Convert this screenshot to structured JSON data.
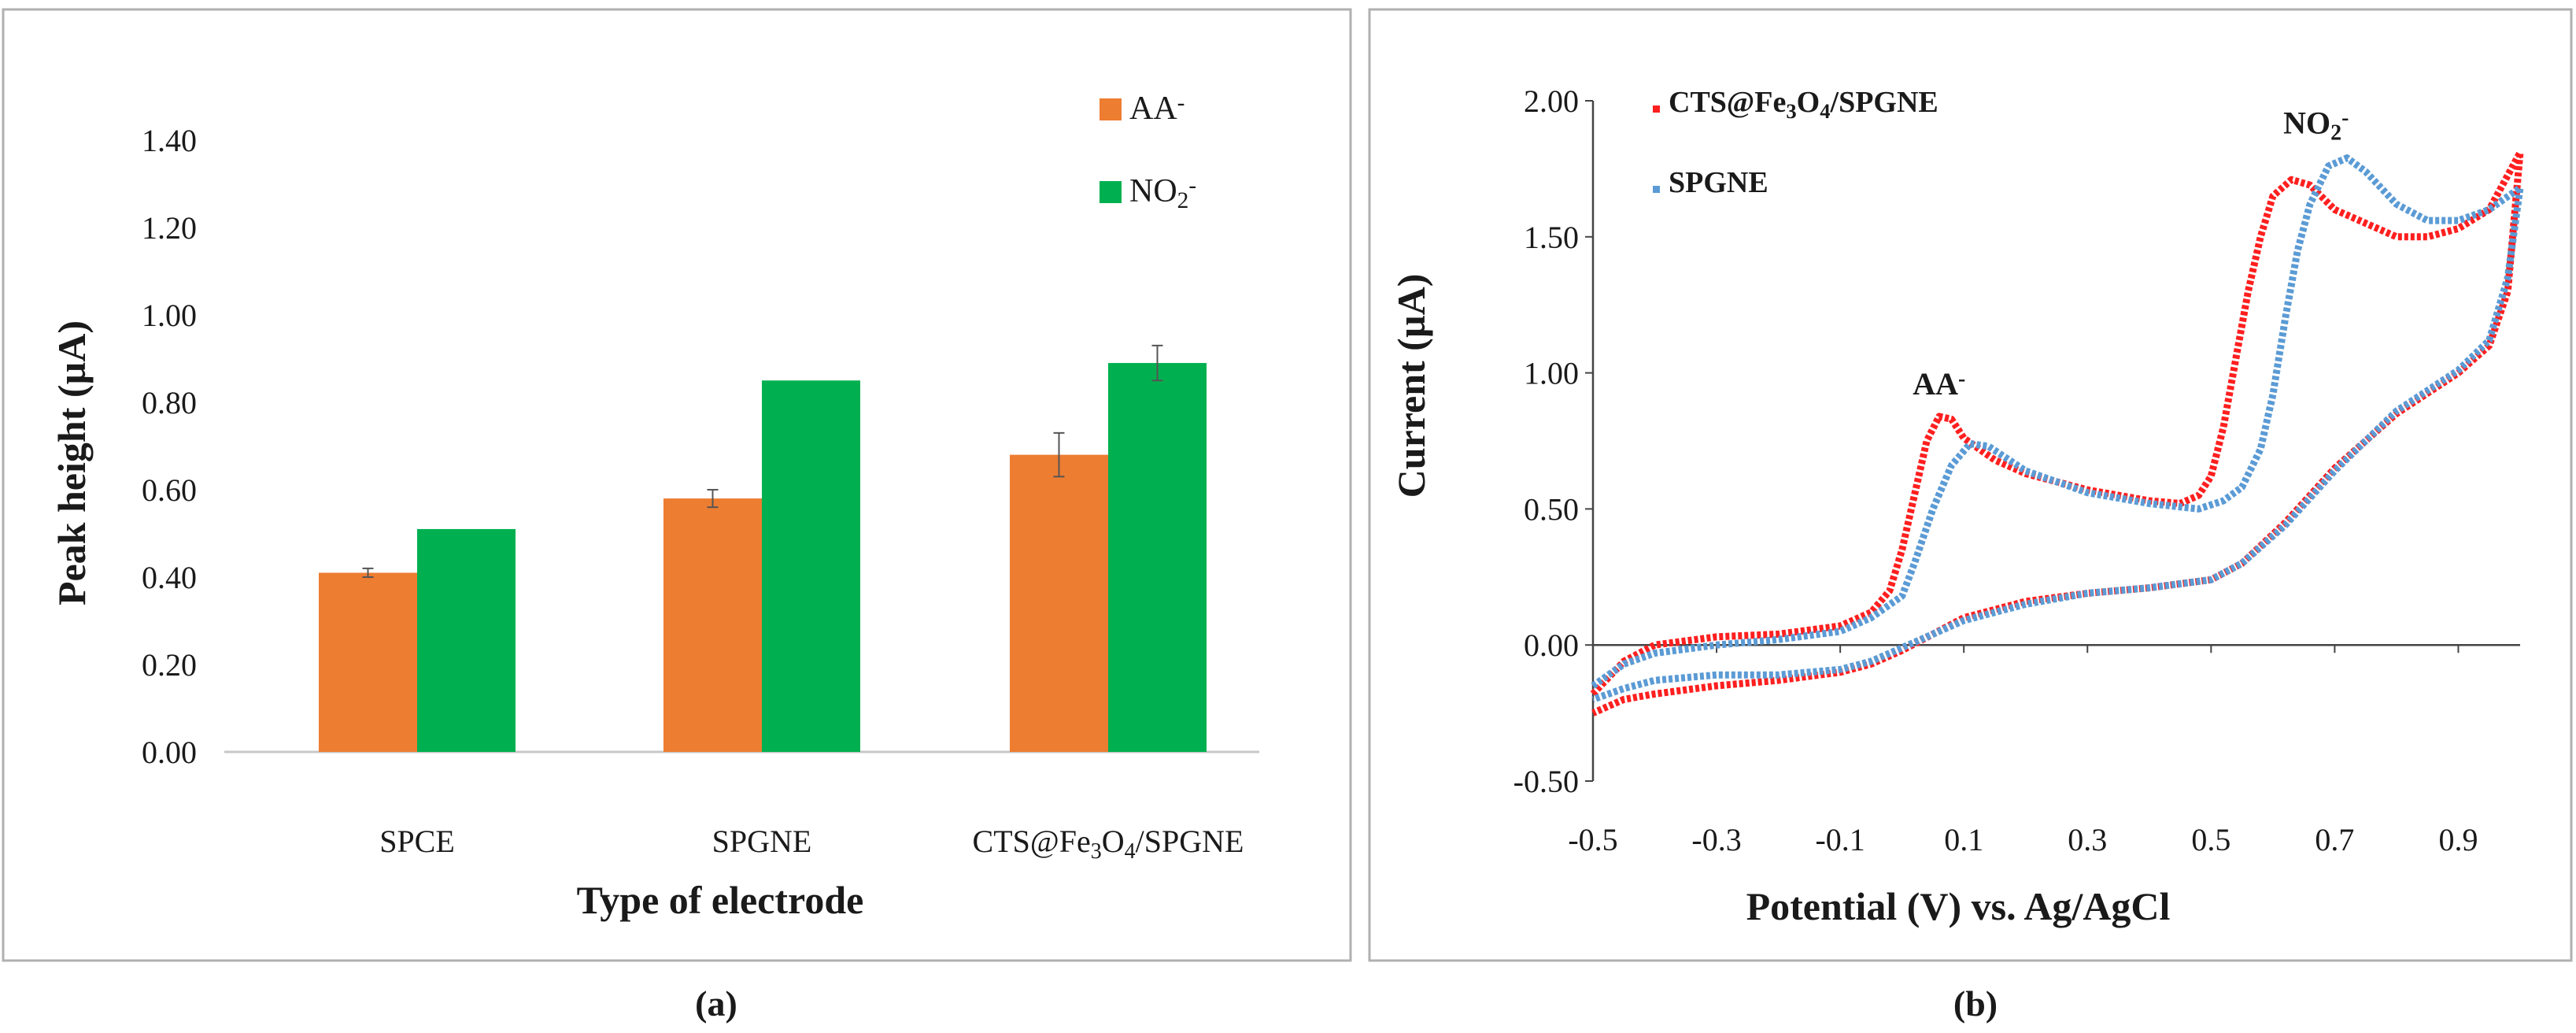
{
  "chart_data": [
    {
      "panel": "(a)",
      "type": "bar",
      "categories": [
        "SPCE",
        "SPGNE",
        "CTS@Fe3O4/SPGNE"
      ],
      "category_labels": [
        {
          "parts": [
            {
              "t": "SPCE"
            }
          ]
        },
        {
          "parts": [
            {
              "t": "SPGNE"
            }
          ]
        },
        {
          "parts": [
            {
              "t": "CTS@Fe"
            },
            {
              "t": "3",
              "sub": true
            },
            {
              "t": "O"
            },
            {
              "t": "4",
              "sub": true
            },
            {
              "t": "/SPGNE"
            }
          ]
        }
      ],
      "series": [
        {
          "name": "AA-",
          "label_parts": [
            {
              "t": "AA"
            },
            {
              "t": "-",
              "sup": true
            }
          ],
          "color": "#ED7D31",
          "values": [
            0.41,
            0.58,
            0.68
          ],
          "errors": [
            0.01,
            0.02,
            0.05
          ]
        },
        {
          "name": "NO2-",
          "label_parts": [
            {
              "t": "NO"
            },
            {
              "t": "2",
              "sub": true
            },
            {
              "t": "-",
              "sup": true
            }
          ],
          "color": "#00B050",
          "values": [
            0.51,
            0.85,
            0.89
          ],
          "errors": [
            0.0,
            0.0,
            0.04
          ]
        }
      ],
      "xlabel": "Type of electrode",
      "ylabel": "Peak height (µA)",
      "ylim": [
        0,
        1.4
      ],
      "yticks": [
        "0.00",
        "0.20",
        "0.40",
        "0.60",
        "0.80",
        "1.00",
        "1.20",
        "1.40"
      ],
      "legend": "top-right"
    },
    {
      "panel": "(b)",
      "type": "line",
      "xlabel": "Potential (V) vs. Ag/AgCl",
      "ylabel": "Current (µA)",
      "xlim": [
        -0.5,
        1.0
      ],
      "ylim": [
        -0.5,
        2.0
      ],
      "xticks": [
        "-0.5",
        "-0.3",
        "-0.1",
        "0.1",
        "0.3",
        "0.5",
        "0.7",
        "0.9"
      ],
      "yticks": [
        "-0.50",
        "0.00",
        "0.50",
        "1.00",
        "1.50",
        "2.00"
      ],
      "legend": "top-left",
      "annotations": [
        {
          "parts": [
            {
              "t": "AA"
            },
            {
              "t": "-",
              "sup": true
            }
          ],
          "x": 0.06,
          "y": 0.92
        },
        {
          "parts": [
            {
              "t": "NO"
            },
            {
              "t": "2",
              "sub": true
            },
            {
              "t": "-",
              "sup": true
            }
          ],
          "x": 0.67,
          "y": 1.88
        }
      ],
      "series": [
        {
          "name": "CTS@Fe3O4/SPGNE",
          "label_parts": [
            {
              "t": "CTS@Fe"
            },
            {
              "t": "3",
              "sub": true
            },
            {
              "t": "O"
            },
            {
              "t": "4",
              "sub": true
            },
            {
              "t": "/SPGNE"
            }
          ],
          "color": "#FF1F1F",
          "forward": [
            [
              -0.5,
              -0.18
            ],
            [
              -0.45,
              -0.06
            ],
            [
              -0.4,
              0.0
            ],
            [
              -0.3,
              0.03
            ],
            [
              -0.2,
              0.04
            ],
            [
              -0.1,
              0.07
            ],
            [
              -0.05,
              0.12
            ],
            [
              -0.02,
              0.2
            ],
            [
              0.0,
              0.35
            ],
            [
              0.02,
              0.55
            ],
            [
              0.04,
              0.75
            ],
            [
              0.06,
              0.84
            ],
            [
              0.08,
              0.83
            ],
            [
              0.1,
              0.76
            ],
            [
              0.15,
              0.68
            ],
            [
              0.2,
              0.63
            ],
            [
              0.3,
              0.57
            ],
            [
              0.4,
              0.53
            ],
            [
              0.45,
              0.52
            ],
            [
              0.48,
              0.55
            ],
            [
              0.5,
              0.62
            ],
            [
              0.52,
              0.8
            ],
            [
              0.54,
              1.05
            ],
            [
              0.56,
              1.3
            ],
            [
              0.58,
              1.5
            ],
            [
              0.6,
              1.65
            ],
            [
              0.63,
              1.71
            ],
            [
              0.66,
              1.69
            ],
            [
              0.7,
              1.6
            ],
            [
              0.75,
              1.55
            ],
            [
              0.8,
              1.5
            ],
            [
              0.85,
              1.5
            ],
            [
              0.9,
              1.53
            ],
            [
              0.95,
              1.6
            ],
            [
              1.0,
              1.81
            ]
          ],
          "reverse": [
            [
              1.0,
              1.81
            ],
            [
              0.98,
              1.3
            ],
            [
              0.95,
              1.1
            ],
            [
              0.9,
              1.0
            ],
            [
              0.8,
              0.85
            ],
            [
              0.7,
              0.65
            ],
            [
              0.62,
              0.45
            ],
            [
              0.55,
              0.3
            ],
            [
              0.5,
              0.24
            ],
            [
              0.4,
              0.21
            ],
            [
              0.3,
              0.19
            ],
            [
              0.2,
              0.16
            ],
            [
              0.1,
              0.1
            ],
            [
              0.05,
              0.04
            ],
            [
              0.0,
              -0.02
            ],
            [
              -0.05,
              -0.07
            ],
            [
              -0.1,
              -0.1
            ],
            [
              -0.2,
              -0.13
            ],
            [
              -0.3,
              -0.15
            ],
            [
              -0.4,
              -0.18
            ],
            [
              -0.45,
              -0.2
            ],
            [
              -0.5,
              -0.25
            ]
          ]
        },
        {
          "name": "SPGNE",
          "label_parts": [
            {
              "t": "SPGNE"
            }
          ],
          "color": "#5B9BD5",
          "forward": [
            [
              -0.5,
              -0.15
            ],
            [
              -0.45,
              -0.07
            ],
            [
              -0.4,
              -0.03
            ],
            [
              -0.3,
              0.0
            ],
            [
              -0.2,
              0.02
            ],
            [
              -0.1,
              0.05
            ],
            [
              -0.05,
              0.1
            ],
            [
              0.0,
              0.18
            ],
            [
              0.02,
              0.3
            ],
            [
              0.05,
              0.5
            ],
            [
              0.08,
              0.66
            ],
            [
              0.11,
              0.74
            ],
            [
              0.14,
              0.73
            ],
            [
              0.2,
              0.64
            ],
            [
              0.3,
              0.56
            ],
            [
              0.4,
              0.52
            ],
            [
              0.48,
              0.5
            ],
            [
              0.52,
              0.53
            ],
            [
              0.55,
              0.58
            ],
            [
              0.58,
              0.72
            ],
            [
              0.6,
              0.92
            ],
            [
              0.62,
              1.2
            ],
            [
              0.64,
              1.45
            ],
            [
              0.66,
              1.62
            ],
            [
              0.69,
              1.76
            ],
            [
              0.72,
              1.79
            ],
            [
              0.75,
              1.74
            ],
            [
              0.8,
              1.62
            ],
            [
              0.85,
              1.56
            ],
            [
              0.9,
              1.56
            ],
            [
              0.95,
              1.6
            ],
            [
              1.0,
              1.68
            ]
          ],
          "reverse": [
            [
              1.0,
              1.68
            ],
            [
              0.98,
              1.35
            ],
            [
              0.95,
              1.12
            ],
            [
              0.9,
              1.01
            ],
            [
              0.8,
              0.86
            ],
            [
              0.7,
              0.64
            ],
            [
              0.62,
              0.44
            ],
            [
              0.55,
              0.3
            ],
            [
              0.5,
              0.24
            ],
            [
              0.4,
              0.21
            ],
            [
              0.3,
              0.19
            ],
            [
              0.2,
              0.15
            ],
            [
              0.1,
              0.09
            ],
            [
              0.05,
              0.04
            ],
            [
              0.0,
              -0.01
            ],
            [
              -0.05,
              -0.06
            ],
            [
              -0.1,
              -0.09
            ],
            [
              -0.2,
              -0.11
            ],
            [
              -0.3,
              -0.11
            ],
            [
              -0.4,
              -0.13
            ],
            [
              -0.45,
              -0.16
            ],
            [
              -0.5,
              -0.2
            ]
          ]
        }
      ]
    }
  ]
}
